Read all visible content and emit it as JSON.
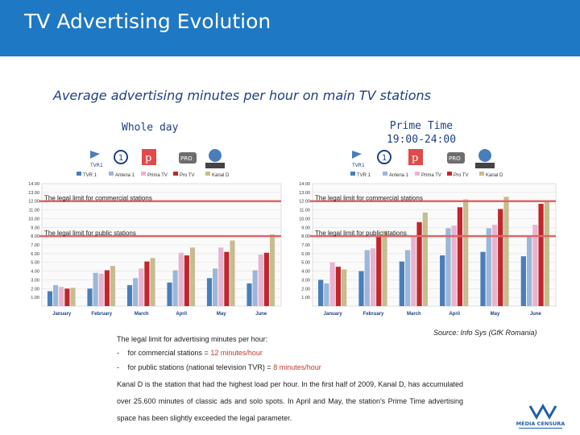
{
  "header": {
    "title": "TV Advertising Evolution"
  },
  "subtitle": "Average advertising minutes per hour on main TV stations",
  "labels": {
    "whole_day": "Whole day",
    "prime_time": "Prime Time",
    "prime_time_hours": "19:00-24:00"
  },
  "colors": {
    "header": "#1f78c3",
    "legal_line": "#e06666"
  },
  "series_colors": [
    "#4a7ebb",
    "#9bb7d9",
    "#e8b4cf",
    "#c0262c",
    "#c7bc8f"
  ],
  "legend": [
    "TVR 1",
    "Antena 1",
    "Prima TV",
    "Pro TV",
    "Kanal D"
  ],
  "chart_data": [
    {
      "type": "bar",
      "categories": [
        "January",
        "February",
        "March",
        "April",
        "May",
        "June"
      ],
      "y_ticks": [
        "1.00",
        "2.00",
        "3.00",
        "4.00",
        "5.00",
        "6.00",
        "7.00",
        "8.00",
        "9.00",
        "10.00",
        "11.00",
        "12.00",
        "13.00",
        "14.00"
      ],
      "ylim": [
        0,
        14
      ],
      "series": [
        {
          "name": "TVR 1",
          "values": [
            1.7,
            2.0,
            2.4,
            2.7,
            3.2,
            2.6
          ]
        },
        {
          "name": "Antena 1",
          "values": [
            2.4,
            3.8,
            3.2,
            4.1,
            4.3,
            4.1
          ]
        },
        {
          "name": "Prima TV",
          "values": [
            2.2,
            3.7,
            4.3,
            6.1,
            6.7,
            5.9
          ]
        },
        {
          "name": "Pro TV",
          "values": [
            2.0,
            4.1,
            5.1,
            5.8,
            6.2,
            6.1
          ]
        },
        {
          "name": "Kanal D",
          "values": [
            2.1,
            4.6,
            5.5,
            6.7,
            7.5,
            8.2
          ]
        }
      ],
      "legal_lines": [
        {
          "label": "The legal limit for commercial stations",
          "value": 12
        },
        {
          "label": "The legal limit for public stations",
          "value": 8
        }
      ]
    },
    {
      "type": "bar",
      "categories": [
        "January",
        "February",
        "March",
        "April",
        "May",
        "June"
      ],
      "y_ticks": [
        "1.00",
        "2.00",
        "3.00",
        "4.00",
        "5.00",
        "6.00",
        "7.00",
        "8.00",
        "9.00",
        "10.00",
        "11.00",
        "12.00",
        "13.00",
        "14.00"
      ],
      "ylim": [
        0,
        14
      ],
      "series": [
        {
          "name": "TVR 1",
          "values": [
            3.0,
            4.0,
            5.1,
            5.8,
            6.2,
            5.7
          ]
        },
        {
          "name": "Antena 1",
          "values": [
            2.6,
            6.4,
            6.4,
            8.9,
            8.9,
            7.9
          ]
        },
        {
          "name": "Prima TV",
          "values": [
            5.0,
            6.6,
            8.1,
            9.2,
            9.3,
            9.3
          ]
        },
        {
          "name": "Pro TV",
          "values": [
            4.5,
            7.9,
            9.6,
            11.3,
            11.1,
            11.7
          ]
        },
        {
          "name": "Kanal D",
          "values": [
            4.2,
            8.6,
            10.7,
            12.2,
            12.5,
            12.0
          ]
        }
      ],
      "legal_lines": [
        {
          "label": "The legal limit for commercial stations",
          "value": 12
        },
        {
          "label": "The legal limit for public stations",
          "value": 8
        }
      ]
    }
  ],
  "notes": {
    "heading": "The legal limit for advertising minutes per hour:",
    "item1_prefix": "for commercial stations = ",
    "item1_value": "12 minutes/hour",
    "item2_prefix": "for public stations (national television TVR) = ",
    "item2_value": "8 minutes/hour",
    "bullet": "-"
  },
  "source": "Source: Info Sys (GfK Romania)",
  "paragraph": "Kanal D is the station that had the highest load per hour. In the first half of 2009, Kanal D, has accumulated over 25.600 minutes of classic ads and solo spots. In April and May, the station's Prime Time advertising space has been slightly exceeded the legal parameter.",
  "logo_text": "MEDIA CENSURA"
}
